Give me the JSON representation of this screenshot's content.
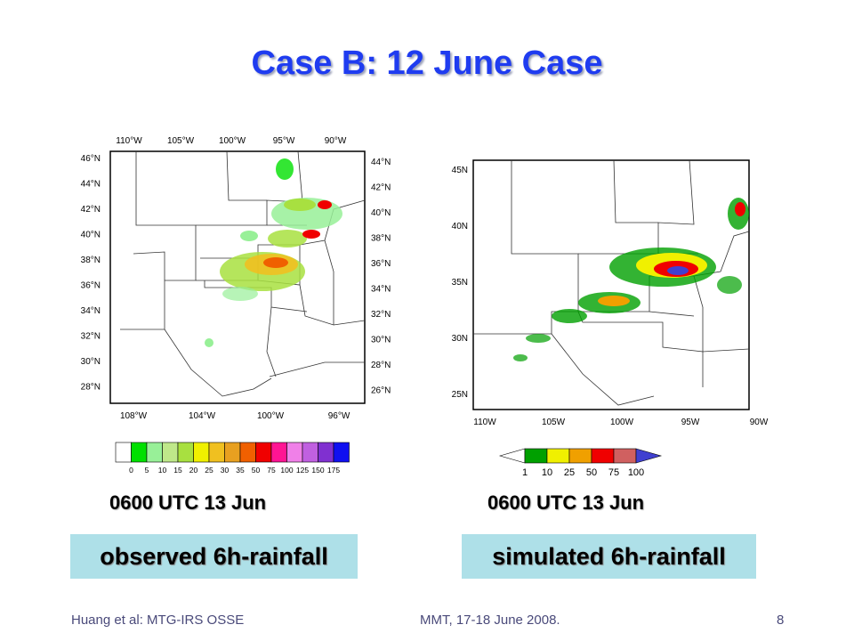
{
  "slide": {
    "title": "Case B: 12 June Case",
    "footer_left": "Huang et al: MTG-IRS OSSE",
    "footer_center": "MMT, 17-18 June 2008.",
    "page_number": "8"
  },
  "left_map": {
    "top_lon_labels": [
      "110°W",
      "105°W",
      "100°W",
      "95°W",
      "90°W"
    ],
    "bottom_lon_labels": [
      "108°W",
      "104°W",
      "100°W",
      "96°W"
    ],
    "left_lat_labels": [
      "46°N",
      "44°N",
      "42°N",
      "40°N",
      "38°N",
      "36°N",
      "34°N",
      "32°N",
      "30°N",
      "28°N"
    ],
    "right_lat_labels": [
      "44°N",
      "42°N",
      "40°N",
      "38°N",
      "36°N",
      "34°N",
      "32°N",
      "30°N",
      "28°N",
      "26°N"
    ],
    "colorbar_labels": [
      "0",
      "5",
      "10",
      "15",
      "20",
      "25",
      "30",
      "35",
      "50",
      "75",
      "100",
      "125",
      "150",
      "175"
    ],
    "colorbar_colors": [
      "#ffffff",
      "#00e000",
      "#98f098",
      "#bfe88a",
      "#a8e040",
      "#f0f000",
      "#f0c020",
      "#e8a020",
      "#f06000",
      "#f00000",
      "#ff1493",
      "#f080e8",
      "#c060e0",
      "#8030d0",
      "#1010f0"
    ],
    "time": "0600 UTC 13 Jun",
    "caption": "observed 6h-rainfall"
  },
  "right_map": {
    "lat_labels": [
      "45N",
      "40N",
      "35N",
      "30N",
      "25N"
    ],
    "lon_labels": [
      "110W",
      "105W",
      "100W",
      "95W",
      "90W"
    ],
    "colorbar_labels": [
      "1",
      "10",
      "25",
      "50",
      "75",
      "100"
    ],
    "colorbar_colors": [
      "#ffffff",
      "#00a000",
      "#f0f000",
      "#f0a000",
      "#f00000",
      "#d06060",
      "#4040d0"
    ],
    "time": "0600 UTC 13 Jun",
    "caption": "simulated 6h-rainfall"
  }
}
